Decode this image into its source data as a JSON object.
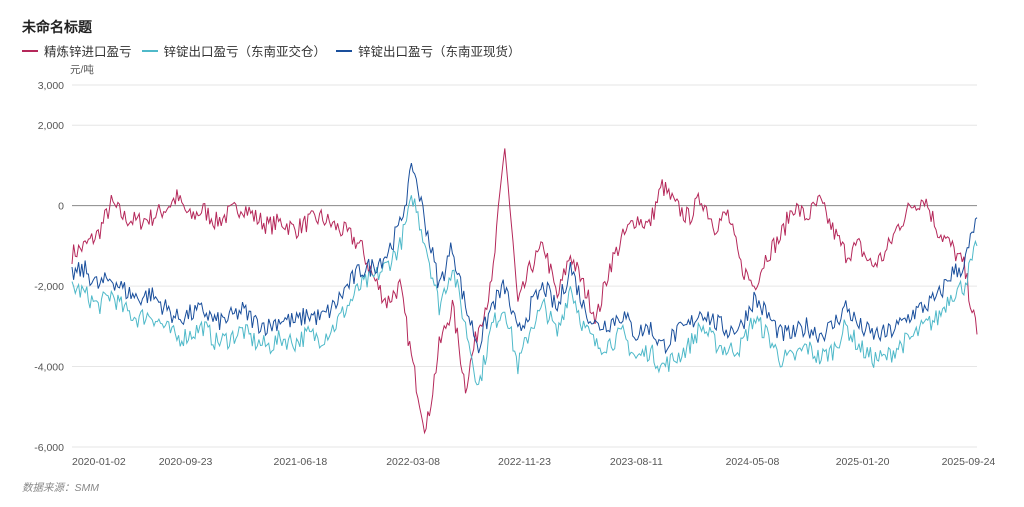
{
  "chart_data": {
    "type": "line",
    "title": "未命名标题",
    "ylabel": "元/吨",
    "ylim": [
      -6000,
      3000
    ],
    "yticks": [
      "3,000",
      "2,000",
      "0",
      "-2,000",
      "-4,000",
      "-6,000"
    ],
    "ytick_values": [
      3000,
      2000,
      0,
      -2000,
      -4000,
      -6000
    ],
    "xticks": [
      "2020-01-02",
      "2020-09-23",
      "2021-06-18",
      "2022-03-08",
      "2022-11-23",
      "2023-08-11",
      "2024-05-08",
      "2025-01-20",
      "2025-09-24"
    ],
    "x_start": "2020-01-02",
    "x_end": "2025-10-14",
    "source": "数据来源：SMM",
    "legend_position": "top-left",
    "x_months": "monthly from 2020-01 to 2025-10",
    "series": [
      {
        "name": "精炼锌进口盈亏",
        "color": "#b5285a",
        "values": [
          -1200,
          -1000,
          -700,
          50,
          -300,
          -400,
          -300,
          -100,
          200,
          -300,
          -100,
          -400,
          -200,
          0,
          -300,
          -500,
          -400,
          -600,
          -400,
          -300,
          -500,
          -700,
          -1000,
          -1800,
          -2400,
          -2000,
          -4000,
          -5600,
          -3500,
          -2500,
          -4500,
          -3000,
          -2000,
          1500,
          -2500,
          -1500,
          -1000,
          -2300,
          -1200,
          -2000,
          -2800,
          -1500,
          -800,
          -300,
          -500,
          500,
          0,
          -300,
          200,
          -500,
          -200,
          -1500,
          -2000,
          -1200,
          -800,
          0,
          -300,
          100,
          -600,
          -1200,
          -1000,
          -1500,
          -1200,
          -500,
          0,
          200,
          -600,
          -1000,
          -1500,
          -3200
        ]
      },
      {
        "name": "锌锭出口盈亏（东南亚交仓）",
        "color": "#4fb9c9",
        "values": [
          -2000,
          -2200,
          -2500,
          -2200,
          -2600,
          -2800,
          -2700,
          -3000,
          -3300,
          -3200,
          -3000,
          -3400,
          -3300,
          -3100,
          -3400,
          -3500,
          -3300,
          -3400,
          -3200,
          -3300,
          -3000,
          -2500,
          -2000,
          -1800,
          -1500,
          -1000,
          200,
          -1000,
          -2500,
          -1500,
          -3000,
          -4500,
          -3000,
          -2500,
          -4000,
          -3000,
          -2500,
          -3200,
          -2000,
          -3000,
          -3500,
          -3400,
          -3200,
          -3800,
          -3600,
          -4000,
          -3800,
          -3500,
          -3000,
          -3400,
          -3600,
          -3500,
          -2800,
          -3200,
          -3800,
          -3800,
          -3500,
          -3800,
          -3600,
          -3000,
          -3500,
          -3800,
          -3800,
          -3500,
          -3300,
          -3000,
          -2800,
          -2200,
          -2000,
          -1000
        ]
      },
      {
        "name": "锌锭出口盈亏（东南亚现货）",
        "color": "#1a4f9c",
        "values": [
          -1700,
          -1600,
          -2000,
          -1800,
          -2100,
          -2300,
          -2200,
          -2500,
          -2800,
          -2700,
          -2600,
          -2900,
          -2800,
          -2600,
          -2900,
          -3000,
          -2800,
          -2900,
          -2700,
          -2800,
          -2500,
          -2000,
          -1600,
          -1500,
          -1200,
          -500,
          1000,
          -500,
          -2000,
          -1000,
          -2500,
          -3500,
          -2500,
          -2000,
          -3200,
          -2500,
          -2000,
          -2600,
          -1500,
          -2500,
          -3000,
          -2900,
          -2700,
          -3200,
          -3000,
          -3500,
          -3200,
          -3000,
          -2600,
          -2900,
          -3100,
          -3000,
          -2300,
          -2700,
          -3200,
          -3200,
          -3000,
          -3200,
          -3000,
          -2500,
          -3000,
          -3200,
          -3200,
          -3000,
          -2700,
          -2500,
          -2300,
          -1700,
          -1500,
          -300
        ]
      }
    ]
  }
}
